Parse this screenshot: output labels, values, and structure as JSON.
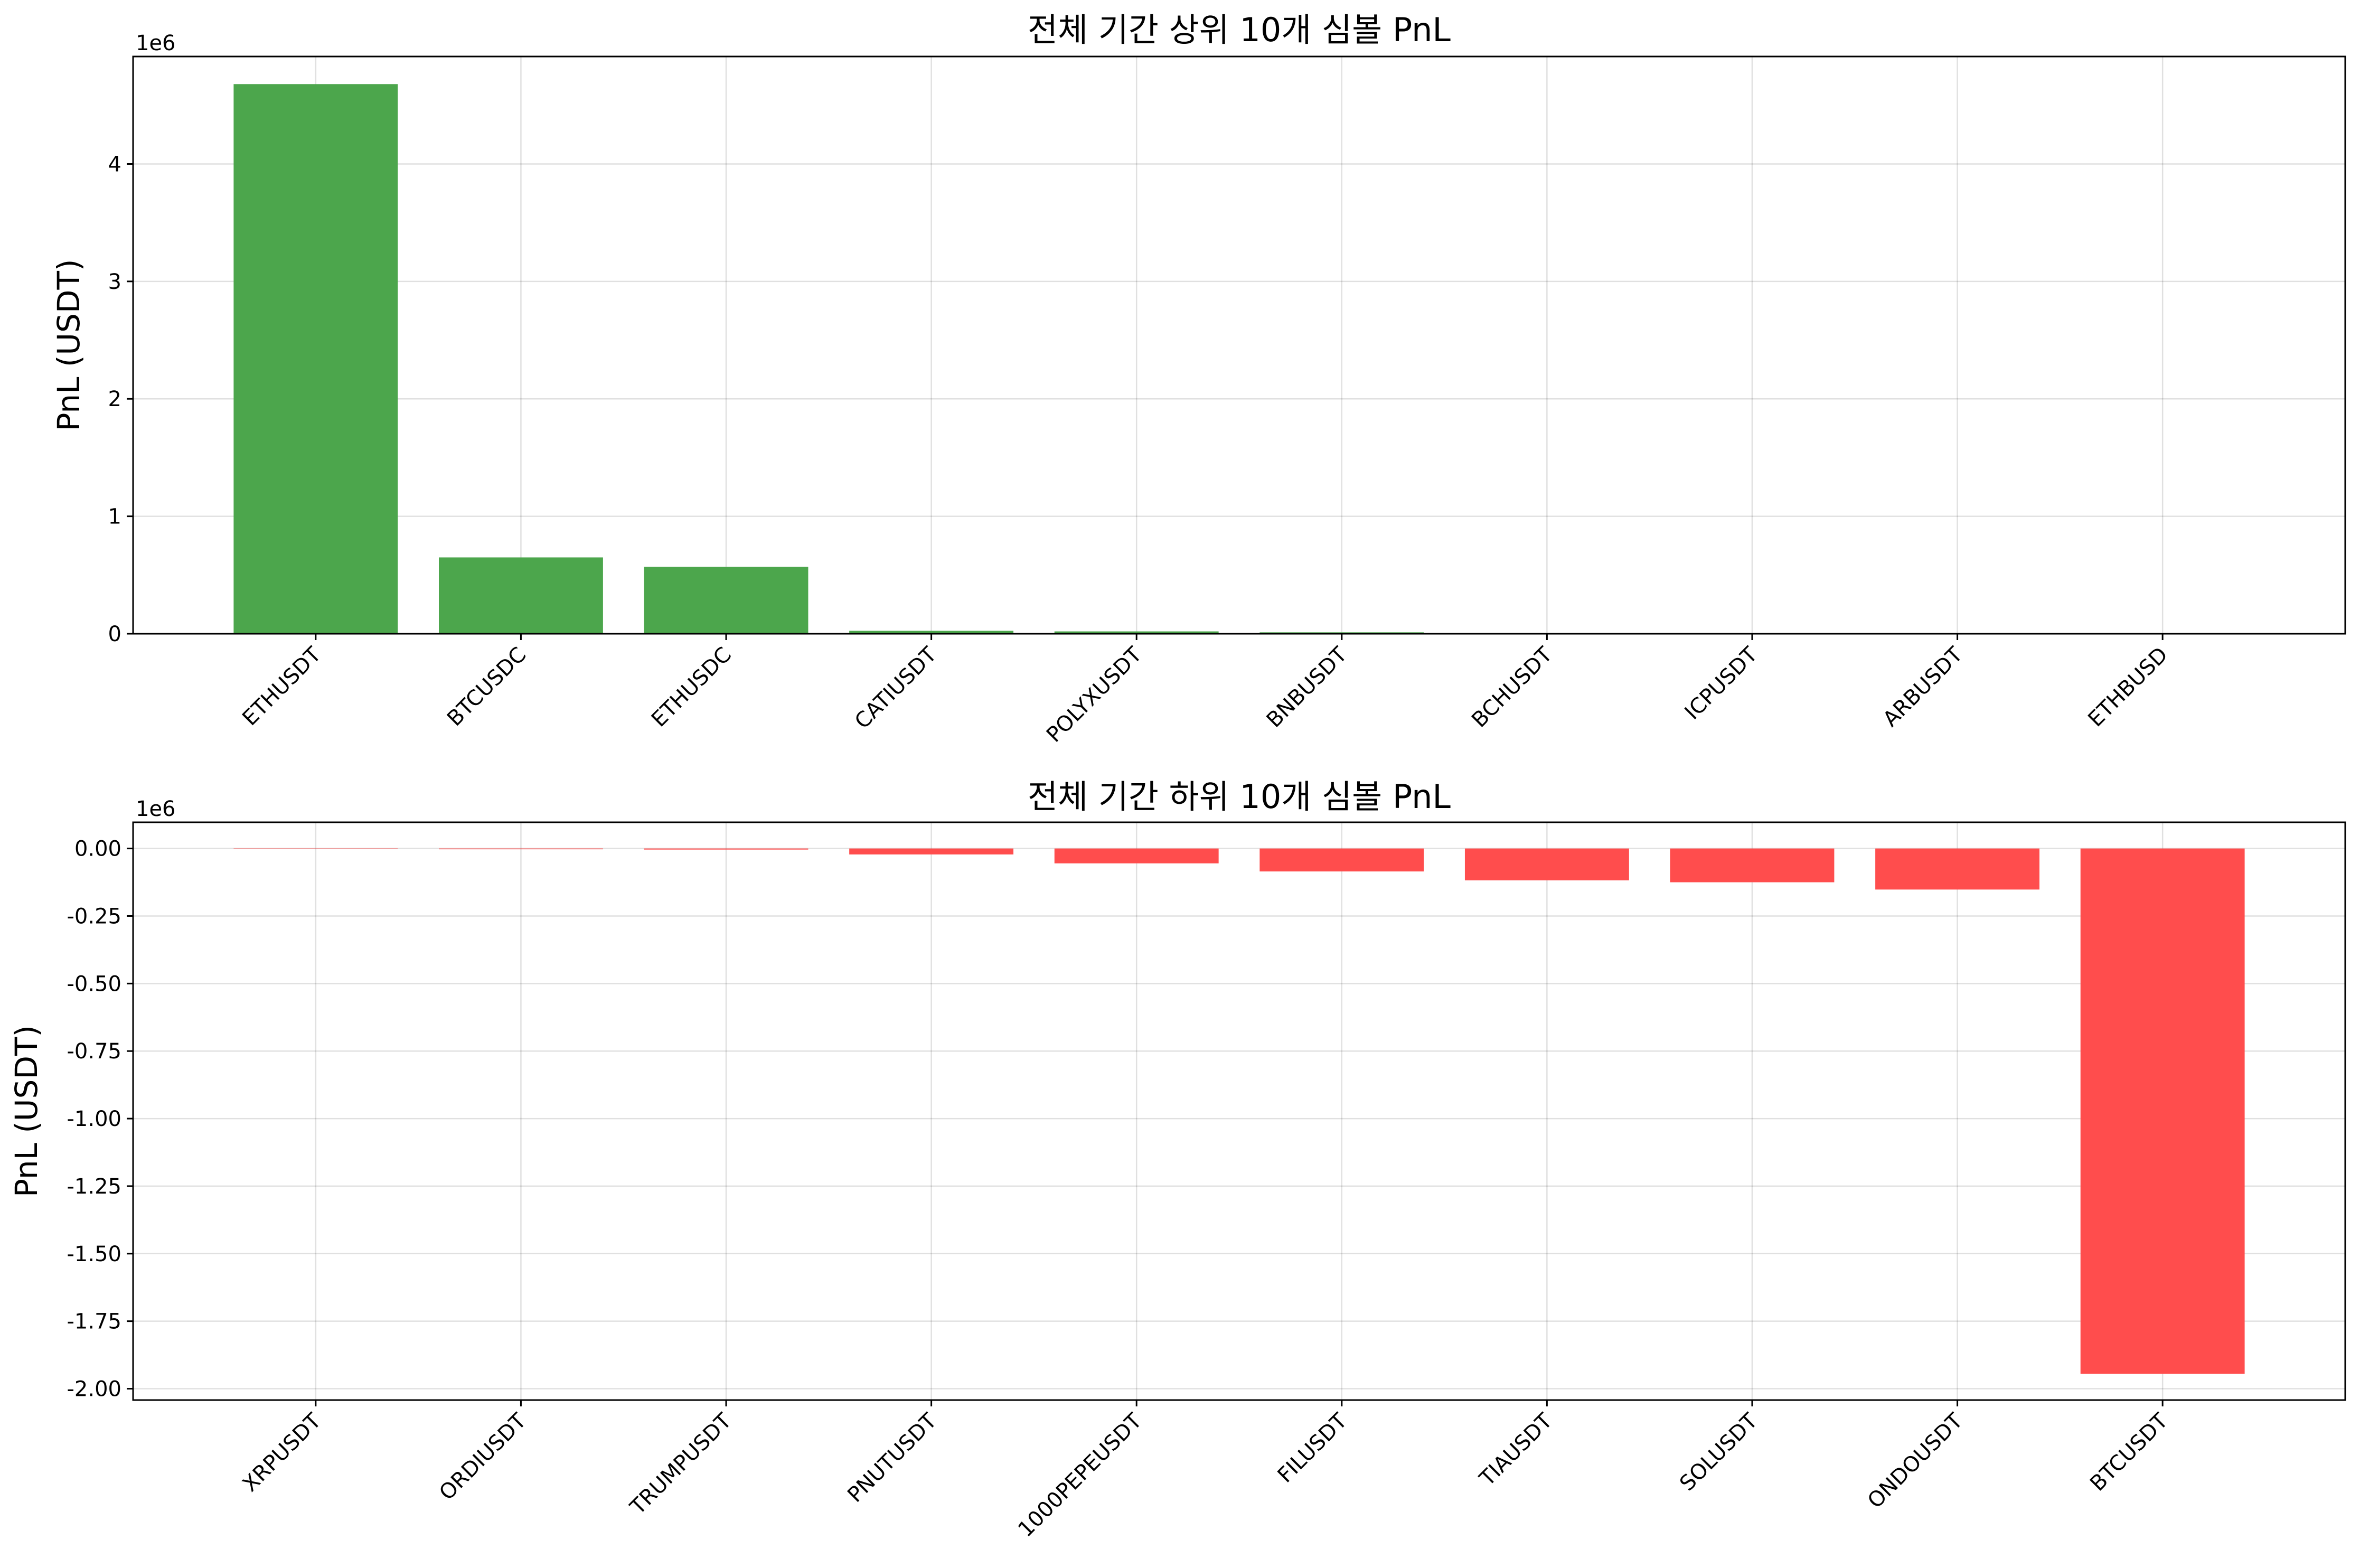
{
  "chart_data": [
    {
      "type": "bar",
      "title": "전체 기간 상위 10개 심볼 PnL",
      "xlabel": "",
      "ylabel": "PnL (USDT)",
      "scale_label": "1e6",
      "categories": [
        "ETHUSDT",
        "BTCUSDC",
        "ETHUSDC",
        "CATIUSDT",
        "POLYXUSDT",
        "BNBUSDT",
        "BCHUSDT",
        "ICPUSDT",
        "ARBUSDT",
        "ETHBUSD"
      ],
      "values": [
        4680000,
        650000,
        570000,
        25000,
        20000,
        12000,
        4000,
        3000,
        2000,
        1500
      ],
      "ylim": [
        0,
        4915000
      ],
      "yticks": [
        0,
        1000000,
        2000000,
        3000000,
        4000000
      ],
      "ytick_labels": [
        "0",
        "1",
        "2",
        "3",
        "4"
      ],
      "bar_color": "#4ca64c",
      "grid": true,
      "legend": "none"
    },
    {
      "type": "bar",
      "title": "전체 기간 하위 10개 심볼 PnL",
      "xlabel": "",
      "ylabel": "PnL (USDT)",
      "scale_label": "1e6",
      "categories": [
        "XRPUSDT",
        "ORDIUSDT",
        "TRUMPUSDT",
        "PNUTUSDT",
        "1000PEPEUSDT",
        "FILUSDT",
        "TIAUSDT",
        "SOLUSDT",
        "ONDOUSDT",
        "BTCUSDT"
      ],
      "values": [
        -2000,
        -3000,
        -4000,
        -22000,
        -55000,
        -85000,
        -118000,
        -125000,
        -152000,
        -1945000
      ],
      "ylim": [
        -2042000,
        97000
      ],
      "yticks": [
        0,
        -250000,
        -500000,
        -750000,
        -1000000,
        -1250000,
        -1500000,
        -1750000,
        -2000000
      ],
      "ytick_labels": [
        "0.00",
        "-0.25",
        "-0.50",
        "-0.75",
        "-1.00",
        "-1.25",
        "-1.50",
        "-1.75",
        "-2.00"
      ],
      "bar_color": "#ff4d4d",
      "grid": true,
      "legend": "none"
    }
  ]
}
